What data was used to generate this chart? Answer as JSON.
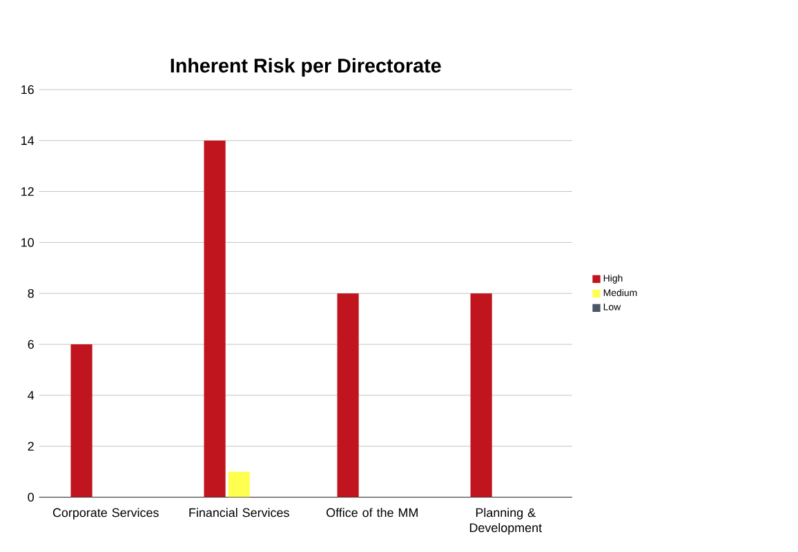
{
  "chart_data": {
    "type": "bar",
    "title": "Inherent Risk per Directorate",
    "categories": [
      "Corporate Services",
      "Financial Services",
      "Office of the MM",
      "Planning & Development"
    ],
    "series": [
      {
        "name": "High",
        "color": "#c0141e",
        "values": [
          6,
          14,
          8,
          8
        ]
      },
      {
        "name": "Medium",
        "color": "#ffff50",
        "values": [
          0,
          1,
          0,
          0
        ]
      },
      {
        "name": "Low",
        "color": "#4a5568",
        "values": [
          0,
          0,
          0,
          0
        ]
      }
    ],
    "ylim": [
      0,
      16
    ],
    "yticks": [
      0,
      2,
      4,
      6,
      8,
      10,
      12,
      14,
      16
    ],
    "grid": "y",
    "legend": "right"
  }
}
